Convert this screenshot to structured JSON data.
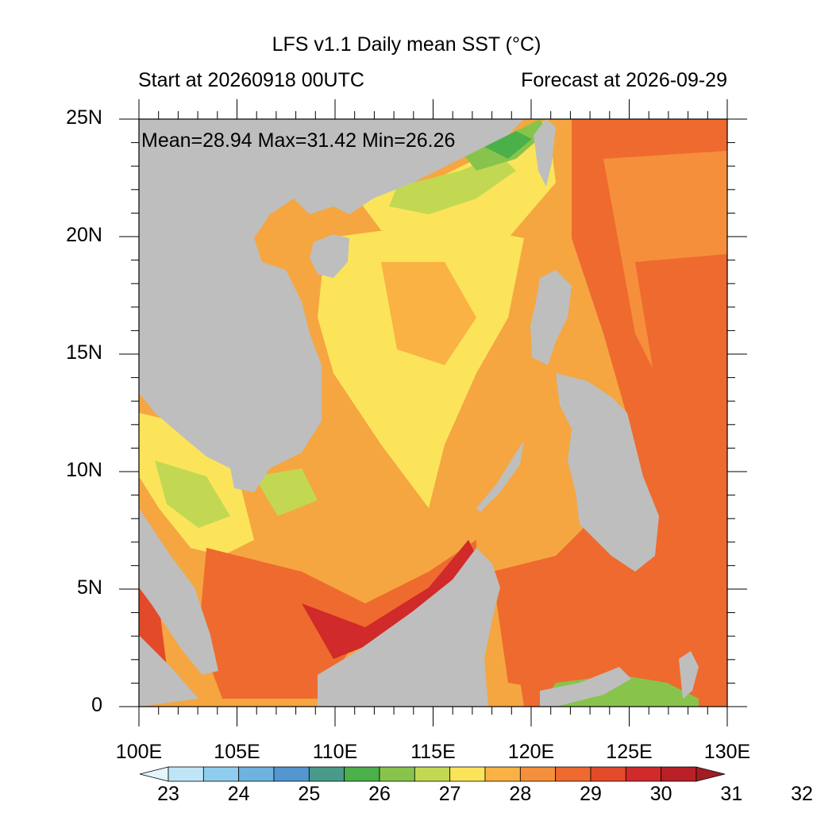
{
  "title": "LFS v1.1 Daily mean SST (",
  "title_unit": "°C",
  "title_close": ")",
  "subtitle_left": "Start at 20260918 00UTC",
  "subtitle_right": "Forecast at 2026-09-29",
  "stats": "Mean=28.94  Max=31.42  Min=26.26",
  "axes": {
    "lat_labels": [
      "0",
      "5N",
      "10N",
      "15N",
      "20N",
      "25N"
    ],
    "lon_labels": [
      "100E",
      "105E",
      "110E",
      "115E",
      "120E",
      "125E",
      "130E"
    ],
    "lat_range": [
      0,
      25
    ],
    "lon_range": [
      100,
      130
    ]
  },
  "colorbar": {
    "labels": [
      "23",
      "24",
      "25",
      "26",
      "27",
      "28",
      "29",
      "30",
      "31",
      "32"
    ],
    "colors": [
      "#e4f4fb",
      "#bfe6f7",
      "#8fcdef",
      "#6eb3e0",
      "#5496d0",
      "#4a9a8a",
      "#4bb04a",
      "#88c44c",
      "#c2d852",
      "#fce45a",
      "#f9b243",
      "#f58f3c",
      "#ef6a2e",
      "#e24a2a",
      "#d12a2a",
      "#b81f26",
      "#a31c23"
    ]
  },
  "colors": {
    "land": "#bebebe",
    "sst_28": "#fce45a",
    "sst_29": "#f9b243",
    "sst_29_5": "#f58f3c",
    "sst_30": "#ef6a2e",
    "sst_31": "#d12a2a"
  }
}
